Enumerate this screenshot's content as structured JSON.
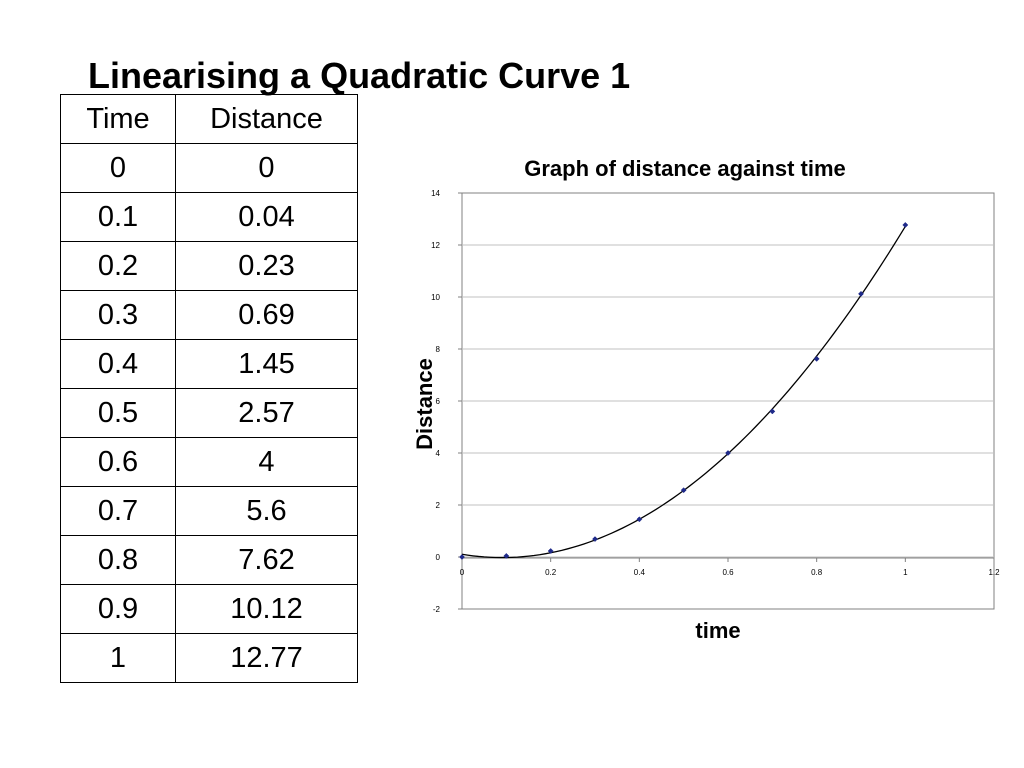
{
  "slide": {
    "title": "Linearising a Quadratic Curve 1"
  },
  "table": {
    "headers": [
      "Time",
      "Distance"
    ],
    "rows": [
      [
        "0",
        "0"
      ],
      [
        "0.1",
        "0.04"
      ],
      [
        "0.2",
        "0.23"
      ],
      [
        "0.3",
        "0.69"
      ],
      [
        "0.4",
        "1.45"
      ],
      [
        "0.5",
        "2.57"
      ],
      [
        "0.6",
        "4"
      ],
      [
        "0.7",
        "5.6"
      ],
      [
        "0.8",
        "7.62"
      ],
      [
        "0.9",
        "10.12"
      ],
      [
        "1",
        "12.77"
      ]
    ]
  },
  "chart_data": {
    "type": "scatter",
    "title": "Graph of distance against time",
    "xlabel": "time",
    "ylabel": "Distance",
    "xlim": [
      0,
      1.2
    ],
    "ylim": [
      -2,
      14
    ],
    "xticks": [
      "0",
      "0.2",
      "0.4",
      "0.6",
      "0.8",
      "1",
      "1.2"
    ],
    "yticks": [
      "-2",
      "0",
      "2",
      "4",
      "6",
      "8",
      "10",
      "12",
      "14"
    ],
    "grid": "horizontal",
    "trendline": "polynomial order 2",
    "series": [
      {
        "x": [
          0,
          0.1,
          0.2,
          0.3,
          0.4,
          0.5,
          0.6,
          0.7,
          0.8,
          0.9,
          1
        ],
        "y": [
          0,
          0.04,
          0.23,
          0.69,
          1.45,
          2.57,
          4,
          5.6,
          7.62,
          10.12,
          12.77
        ]
      }
    ],
    "colors": {
      "points": "#1f2a8a",
      "trendline": "#000000",
      "grid": "#c0c0c0"
    }
  }
}
